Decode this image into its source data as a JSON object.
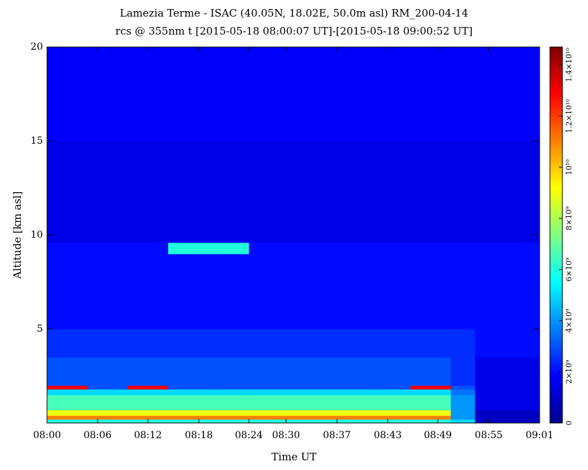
{
  "chart_data": {
    "type": "heatmap",
    "title": "Lamezia Terme - ISAC (40.05N, 18.02E, 50.0m asl) RM_200-04-14",
    "subtitle": "rcs @ 355nm t [2015-05-18 08:00:07 UT]-[2015-05-18 09:00:52 UT]",
    "x_label": "Time UT",
    "y_label": "Altitude [km asl]",
    "colormap": "jet",
    "xlim": [
      0,
      61
    ],
    "xticks": [
      {
        "value": 0,
        "label": "08:00"
      },
      {
        "value": 6.26,
        "label": "08:06"
      },
      {
        "value": 12.5,
        "label": "08:12"
      },
      {
        "value": 18.8,
        "label": "08:18"
      },
      {
        "value": 25.0,
        "label": "08:24"
      },
      {
        "value": 29.6,
        "label": "08:30"
      },
      {
        "value": 35.9,
        "label": "08:37"
      },
      {
        "value": 42.2,
        "label": "08:43"
      },
      {
        "value": 48.4,
        "label": "08:49"
      },
      {
        "value": 54.7,
        "label": "08:55"
      },
      {
        "value": 61,
        "label": "09:01"
      }
    ],
    "ylim": [
      0,
      20
    ],
    "yticks": [
      5,
      10,
      15,
      20
    ],
    "x": [
      0,
      5,
      10,
      15,
      20,
      25,
      30,
      35,
      40,
      45,
      50,
      53,
      61
    ],
    "y": [
      0,
      0.2,
      0.4,
      0.7,
      1.5,
      1.8,
      2,
      3.5,
      5,
      9,
      9.6,
      12,
      15,
      20
    ],
    "z": [
      [
        6000000000,
        6000000000,
        6000000000,
        6000000000,
        6000000000,
        6000000000,
        6000000000,
        6000000000,
        6000000000,
        6000000000,
        5000000000,
        1000000000
      ],
      [
        11000000000,
        11000000000,
        11000000000,
        11000000000,
        11000000000,
        11000000000,
        11000000000,
        11000000000,
        11000000000,
        11000000000,
        4000000000,
        1000000000
      ],
      [
        9000000000,
        9000000000,
        9000000000,
        9000000000,
        9000000000,
        9000000000,
        9000000000,
        9000000000,
        9000000000,
        9000000000,
        4000000000,
        1000000000
      ],
      [
        6500000000,
        6500000000,
        6500000000,
        6500000000,
        6500000000,
        6500000000,
        6500000000,
        6500000000,
        6500000000,
        6500000000,
        4000000000,
        1500000000
      ],
      [
        5000000000,
        5000000000,
        5000000000,
        5000000000,
        5000000000,
        5000000000,
        5000000000,
        5000000000,
        5000000000,
        5000000000,
        3500000000,
        1500000000
      ],
      [
        13000000000,
        3000000000,
        13000000000,
        3000000000,
        3000000000,
        3000000000,
        3000000000,
        3000000000,
        3000000000,
        13000000000,
        3000000000,
        1500000000
      ],
      [
        3000000000,
        3000000000,
        3000000000,
        3000000000,
        3000000000,
        3000000000,
        3000000000,
        3000000000,
        3000000000,
        3000000000,
        2500000000,
        1500000000
      ],
      [
        2500000000,
        2500000000,
        2500000000,
        2500000000,
        2500000000,
        2500000000,
        2500000000,
        2500000000,
        2500000000,
        2500000000,
        2500000000,
        2000000000
      ],
      [
        2000000000,
        2000000000,
        2000000000,
        2000000000,
        2000000000,
        2000000000,
        2000000000,
        2000000000,
        2000000000,
        2000000000,
        2000000000,
        2000000000
      ],
      [
        2000000000,
        2000000000,
        2000000000,
        6000000000,
        6000000000,
        2000000000,
        2000000000,
        2000000000,
        2000000000,
        2000000000,
        2000000000,
        2000000000
      ],
      [
        1500000000,
        1500000000,
        1500000000,
        1500000000,
        1500000000,
        1500000000,
        1500000000,
        1500000000,
        1500000000,
        1500000000,
        1500000000,
        1500000000
      ],
      [
        1500000000,
        1500000000,
        1500000000,
        1500000000,
        1500000000,
        1500000000,
        1500000000,
        1500000000,
        1500000000,
        1500000000,
        1500000000,
        1500000000
      ],
      [
        1800000000,
        1800000000,
        1800000000,
        1800000000,
        1800000000,
        1800000000,
        1800000000,
        1800000000,
        1800000000,
        1800000000,
        1800000000,
        1800000000
      ]
    ],
    "zlim": [
      0,
      14700000000
    ],
    "zticks": [
      {
        "value": 0,
        "label": "0"
      },
      {
        "value": 2000000000,
        "label": "2×10⁹"
      },
      {
        "value": 4000000000,
        "label": "4×10⁹"
      },
      {
        "value": 6000000000,
        "label": "6×10⁹"
      },
      {
        "value": 8000000000,
        "label": "8×10⁹"
      },
      {
        "value": 10000000000,
        "label": "10¹⁰"
      },
      {
        "value": 12000000000,
        "label": "1.2×10¹⁰"
      },
      {
        "value": 14000000000,
        "label": "1.4×10¹⁰"
      }
    ]
  }
}
